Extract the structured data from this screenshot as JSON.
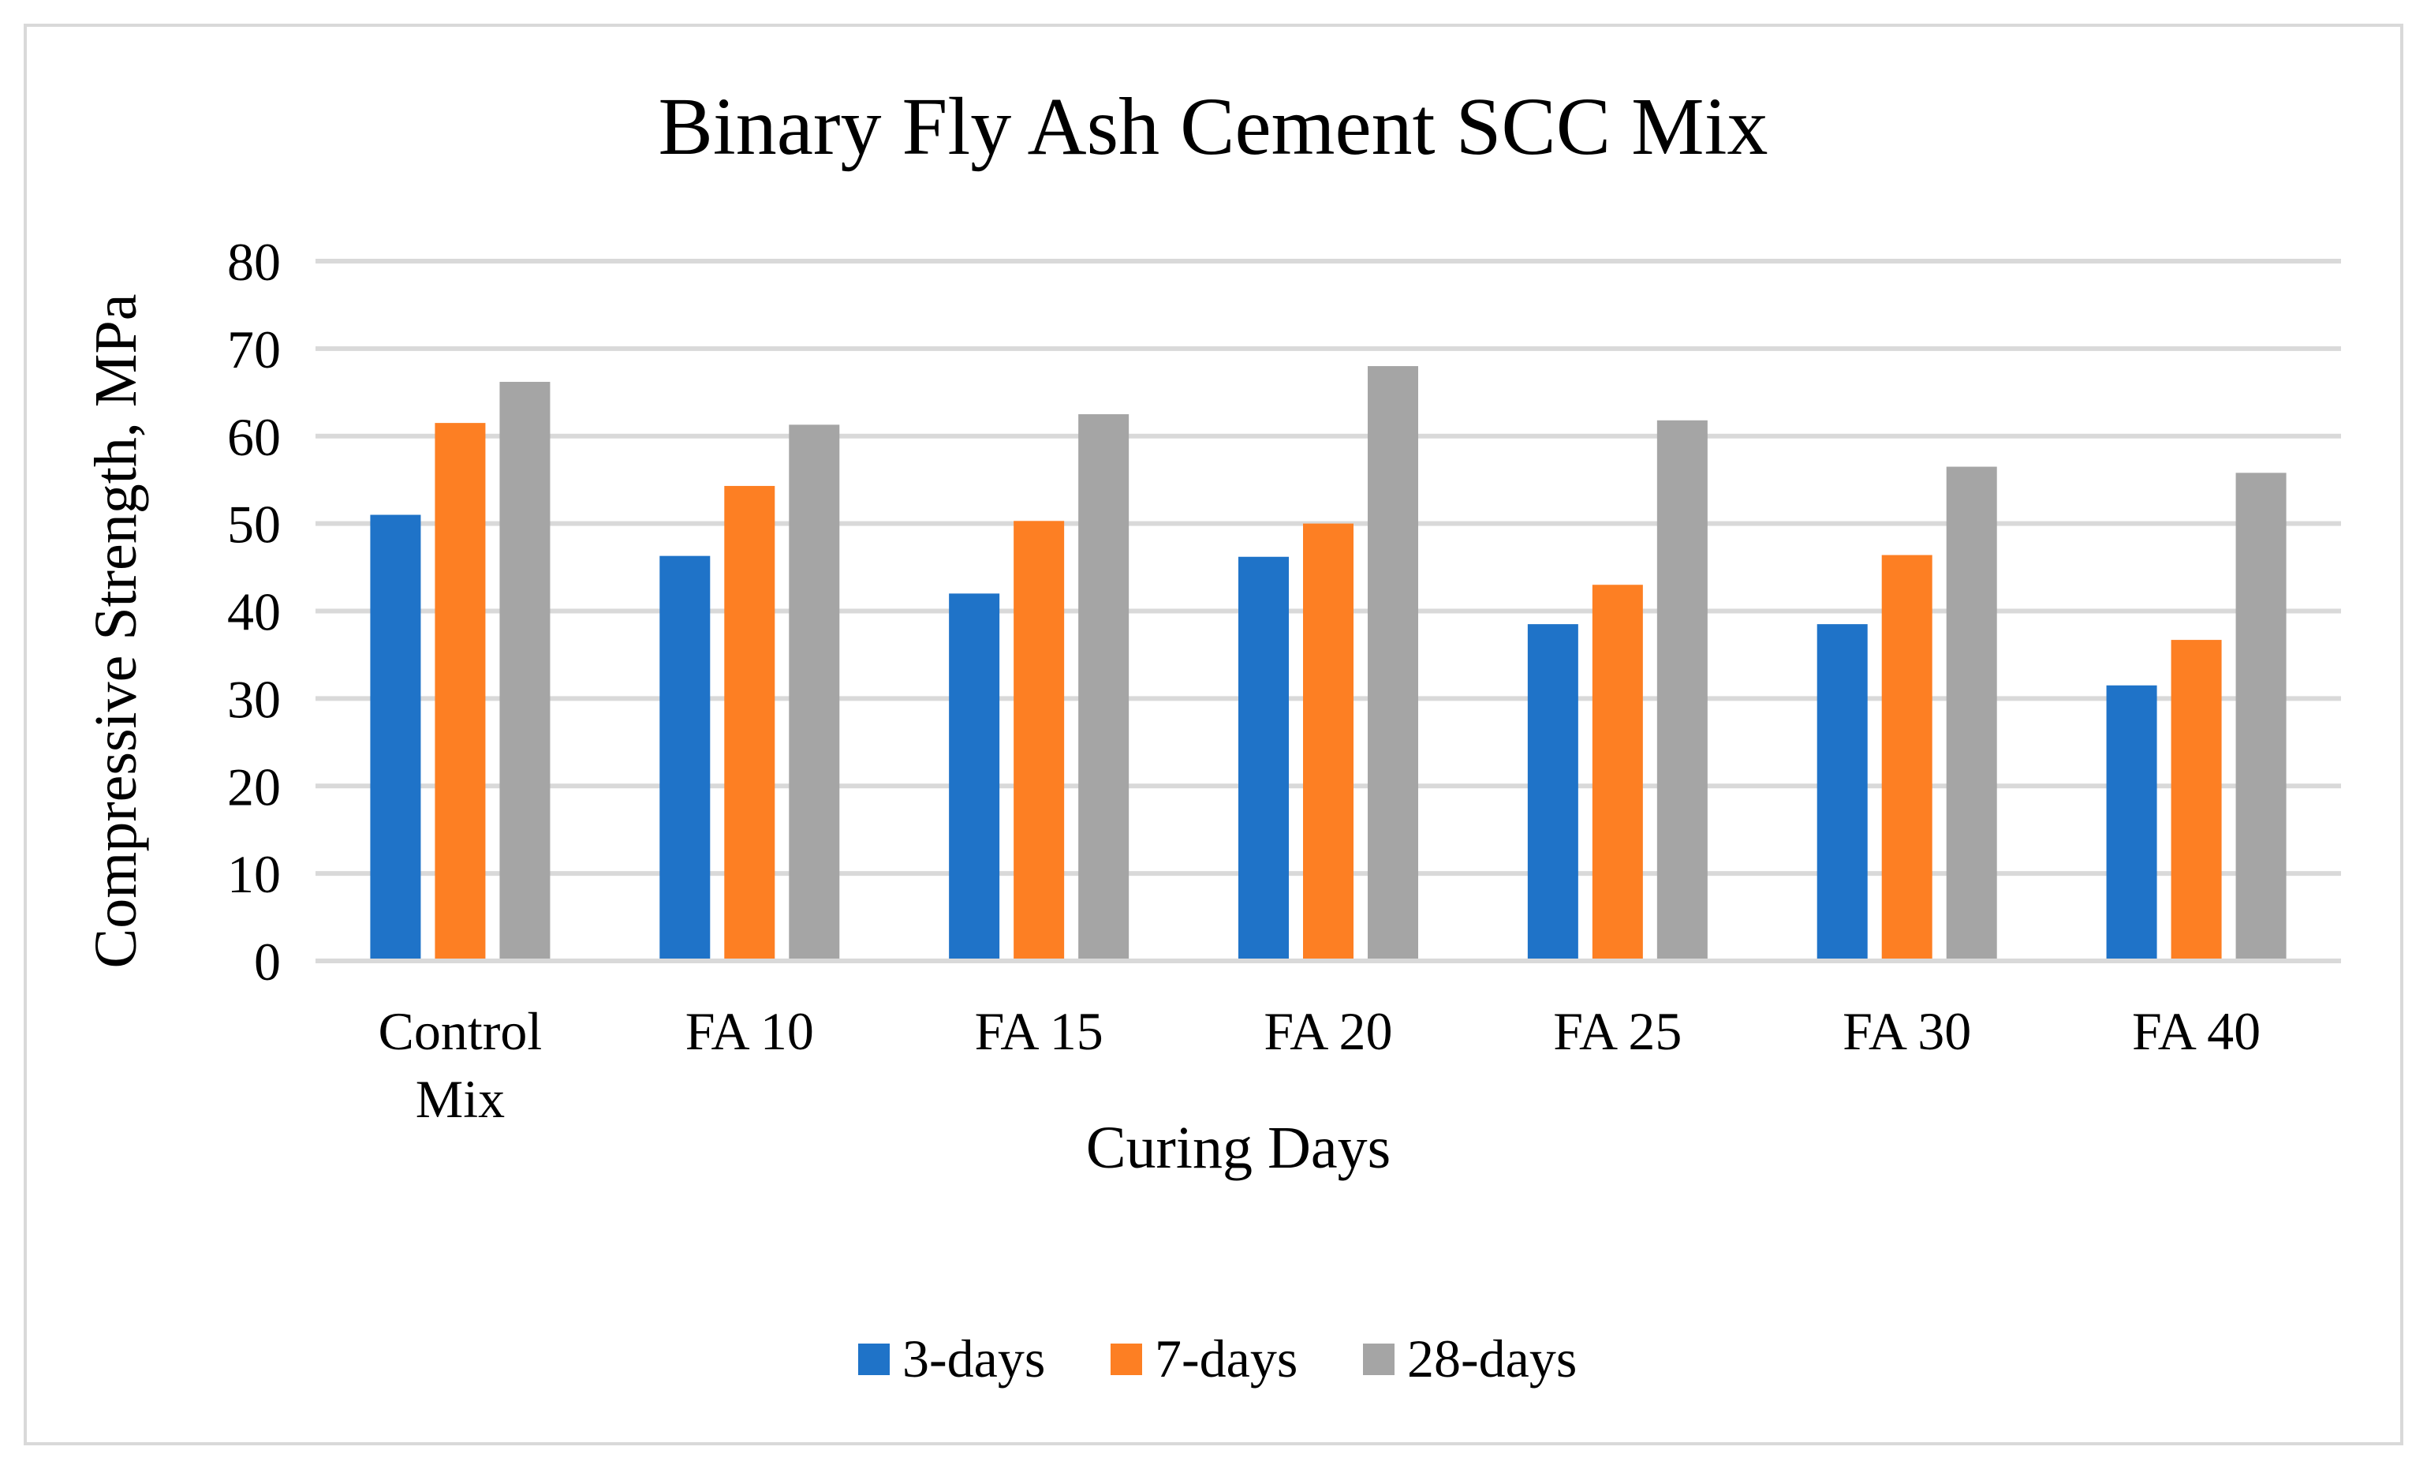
{
  "chart_data": {
    "type": "bar",
    "title": "Binary Fly Ash Cement SCC Mix",
    "xlabel": "Curing Days",
    "ylabel": "Compressive Strength, MPa",
    "ylim": [
      0,
      80
    ],
    "yticks": [
      "0",
      "10",
      "20",
      "30",
      "40",
      "50",
      "60",
      "70",
      "80"
    ],
    "grid": true,
    "legend_position": "bottom",
    "categories": [
      "Control Mix",
      "FA 10",
      "FA 15",
      "FA 20",
      "FA 25",
      "FA 30",
      "FA 40"
    ],
    "series": [
      {
        "name": "3-days",
        "color": "#1f73c8",
        "values": [
          51,
          46.3,
          42,
          46.2,
          38.5,
          38.5,
          31.5
        ]
      },
      {
        "name": "7-days",
        "color": "#fd7f23",
        "values": [
          61.5,
          54.3,
          50.3,
          50,
          43,
          46.4,
          36.7
        ]
      },
      {
        "name": "28-days",
        "color": "#a5a5a5",
        "values": [
          66.2,
          61.3,
          62.5,
          68,
          61.8,
          56.5,
          55.8
        ]
      }
    ]
  }
}
